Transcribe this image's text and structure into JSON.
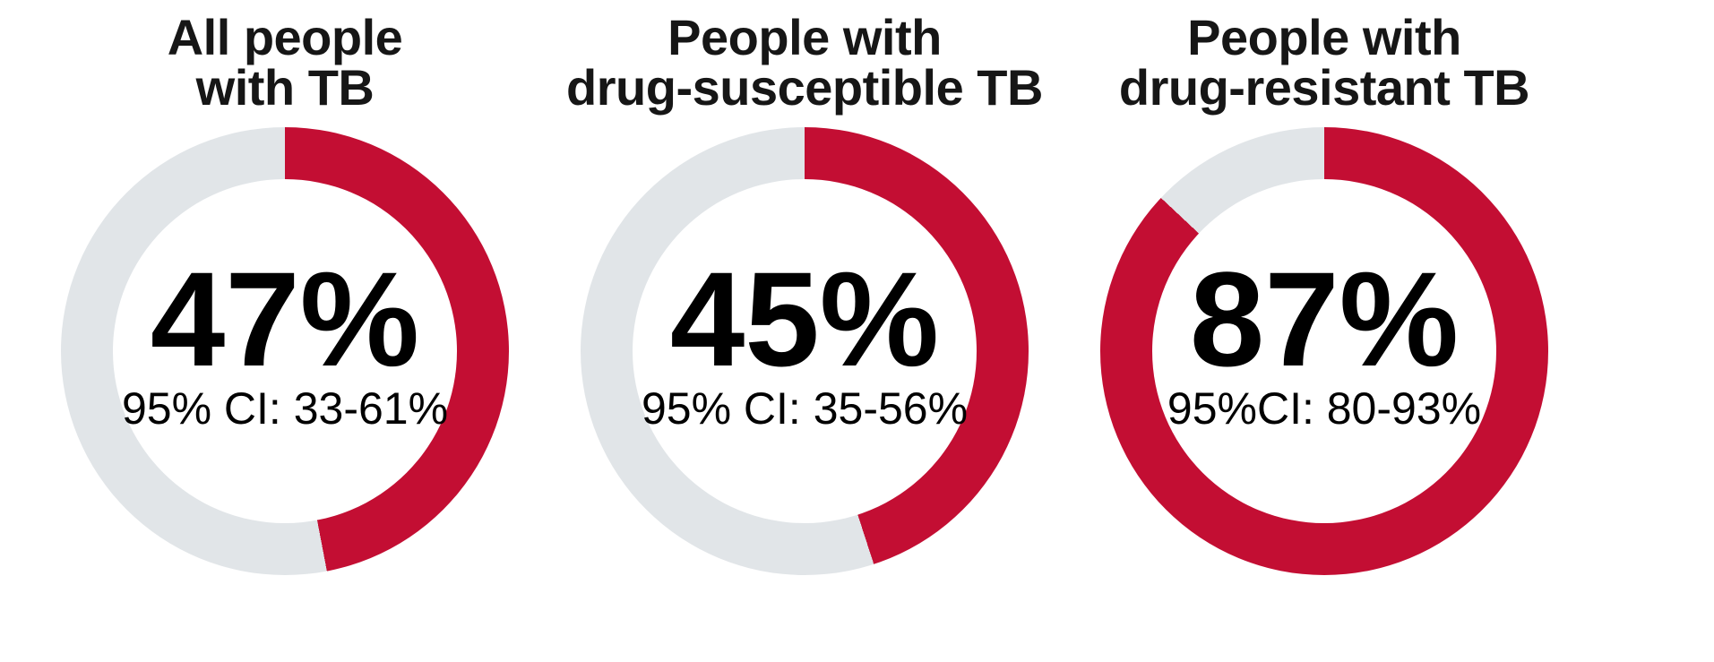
{
  "colors": {
    "segment": "#C30E33",
    "remainder": "#E1E5E8",
    "title_text": "#161616",
    "value_text": "#000000",
    "background": "#FFFFFF"
  },
  "charts": [
    {
      "title_line1": "All people",
      "title_line2": "with TB",
      "value_label": "47%",
      "ci_label": "95% CI: 33-61%",
      "percent": 47
    },
    {
      "title_line1": "People with",
      "title_line2": "drug-susceptible TB",
      "value_label": "45%",
      "ci_label": "95% CI: 35-56%",
      "percent": 45
    },
    {
      "title_line1": "People with",
      "title_line2": "drug-resistant TB",
      "value_label": "87%",
      "ci_label": "95%CI: 80-93%",
      "percent": 87
    }
  ],
  "chart_data": [
    {
      "type": "pie",
      "subtype": "donut",
      "title": "All people with TB",
      "center_value": "47%",
      "center_subtext": "95% CI: 33-61%",
      "slices": [
        {
          "label": "value",
          "value": 47,
          "color": "#C30E33"
        },
        {
          "label": "remainder",
          "value": 53,
          "color": "#E1E5E8"
        }
      ],
      "start_angle_deg": 0,
      "direction": "clockwise",
      "legend": "none",
      "grid": false
    },
    {
      "type": "pie",
      "subtype": "donut",
      "title": "People with drug-susceptible TB",
      "center_value": "45%",
      "center_subtext": "95% CI: 35-56%",
      "slices": [
        {
          "label": "value",
          "value": 45,
          "color": "#C30E33"
        },
        {
          "label": "remainder",
          "value": 55,
          "color": "#E1E5E8"
        }
      ],
      "start_angle_deg": 0,
      "direction": "clockwise",
      "legend": "none",
      "grid": false
    },
    {
      "type": "pie",
      "subtype": "donut",
      "title": "People with drug-resistant TB",
      "center_value": "87%",
      "center_subtext": "95%CI: 80-93%",
      "slices": [
        {
          "label": "value",
          "value": 87,
          "color": "#C30E33"
        },
        {
          "label": "remainder",
          "value": 13,
          "color": "#E1E5E8"
        }
      ],
      "start_angle_deg": 0,
      "direction": "clockwise",
      "legend": "none",
      "grid": false
    }
  ]
}
